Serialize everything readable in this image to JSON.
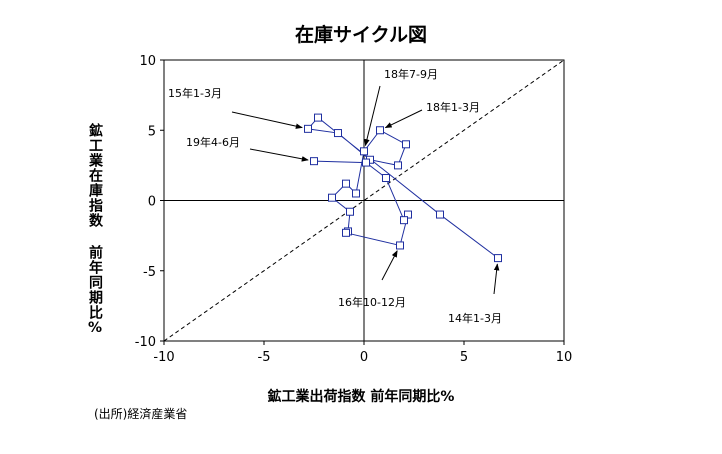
{
  "chart_data": {
    "type": "scatter",
    "title": "在庫サイクル図",
    "xlabel": "鉱工業出荷指数 前年同期比%",
    "ylabel": "鉱工業在庫指数 前年同期比%",
    "xlim": [
      -10,
      10
    ],
    "ylim": [
      -10,
      10
    ],
    "xticks": [
      -10,
      -5,
      0,
      5,
      10
    ],
    "yticks": [
      10,
      5,
      0,
      -5,
      -10
    ],
    "grid": false,
    "reference_line": "y = x (dashed)",
    "series": [
      {
        "values": [
          {
            "x": 6.7,
            "y": -4.1
          },
          {
            "x": 3.8,
            "y": -1.0
          },
          {
            "x": -2.3,
            "y": 5.9
          },
          {
            "x": -2.8,
            "y": 5.1
          },
          {
            "x": -1.3,
            "y": 4.8
          },
          {
            "x": 0.3,
            "y": 2.9
          },
          {
            "x": 1.7,
            "y": 2.5
          },
          {
            "x": 2.1,
            "y": 4.0
          },
          {
            "x": 0.8,
            "y": 5.0
          },
          {
            "x": 0.0,
            "y": 3.5
          },
          {
            "x": -0.4,
            "y": 0.5
          },
          {
            "x": -0.9,
            "y": 1.2
          },
          {
            "x": -1.6,
            "y": 0.2
          },
          {
            "x": -0.7,
            "y": -0.8
          },
          {
            "x": -0.8,
            "y": -2.2
          },
          {
            "x": -0.9,
            "y": -2.3
          },
          {
            "x": 1.8,
            "y": -3.2
          },
          {
            "x": 2.2,
            "y": -1.0
          },
          {
            "x": 2.0,
            "y": -1.4
          },
          {
            "x": 1.1,
            "y": 1.6
          },
          {
            "x": 0.1,
            "y": 2.7
          },
          {
            "x": -2.5,
            "y": 2.8
          }
        ]
      }
    ],
    "annotations": [
      {
        "text": "15年1-3月",
        "point_index": 3
      },
      {
        "text": "18年7-9月",
        "point_index": 9
      },
      {
        "text": "18年1-3月",
        "point_index": 8
      },
      {
        "text": "19年4-6月",
        "point_index": 21
      },
      {
        "text": "16年10-12月",
        "point_index": 16
      },
      {
        "text": "14年1-3月",
        "point_index": 0
      }
    ],
    "colors": {
      "series": "#1f2fa0",
      "axes": "#000000"
    }
  },
  "source": "(出所)経済産業省"
}
